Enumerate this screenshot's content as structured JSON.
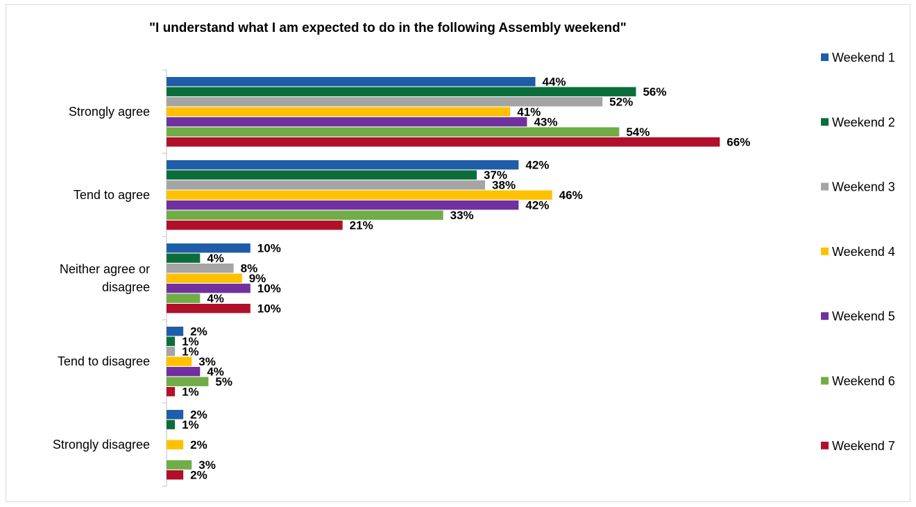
{
  "chart_data": {
    "type": "bar",
    "orientation": "horizontal",
    "title": "\"I understand what I am expected to do in the following Assembly weekend\"",
    "xlabel": "",
    "ylabel": "",
    "xlim": [
      0,
      70
    ],
    "grid": false,
    "legend_position": "right",
    "value_format": "percent",
    "categories": [
      "Strongly agree",
      "Tend to agree",
      "Neither agree or disagree",
      "Tend to disagree",
      "Strongly disagree"
    ],
    "series": [
      {
        "name": "Weekend 1",
        "color": "#1f5da8",
        "values": [
          44,
          42,
          10,
          2,
          2
        ]
      },
      {
        "name": "Weekend 2",
        "color": "#0b6e3a",
        "values": [
          56,
          37,
          4,
          1,
          1
        ]
      },
      {
        "name": "Weekend 3",
        "color": "#a5a5a5",
        "values": [
          52,
          38,
          8,
          1,
          null
        ]
      },
      {
        "name": "Weekend 4",
        "color": "#ffc000",
        "values": [
          41,
          46,
          9,
          3,
          2
        ]
      },
      {
        "name": "Weekend 5",
        "color": "#7030a0",
        "values": [
          43,
          42,
          10,
          4,
          null
        ]
      },
      {
        "name": "Weekend 6",
        "color": "#70ad47",
        "values": [
          54,
          33,
          4,
          5,
          3
        ]
      },
      {
        "name": "Weekend 7",
        "color": "#b0102a",
        "values": [
          66,
          21,
          10,
          1,
          2
        ]
      }
    ]
  }
}
